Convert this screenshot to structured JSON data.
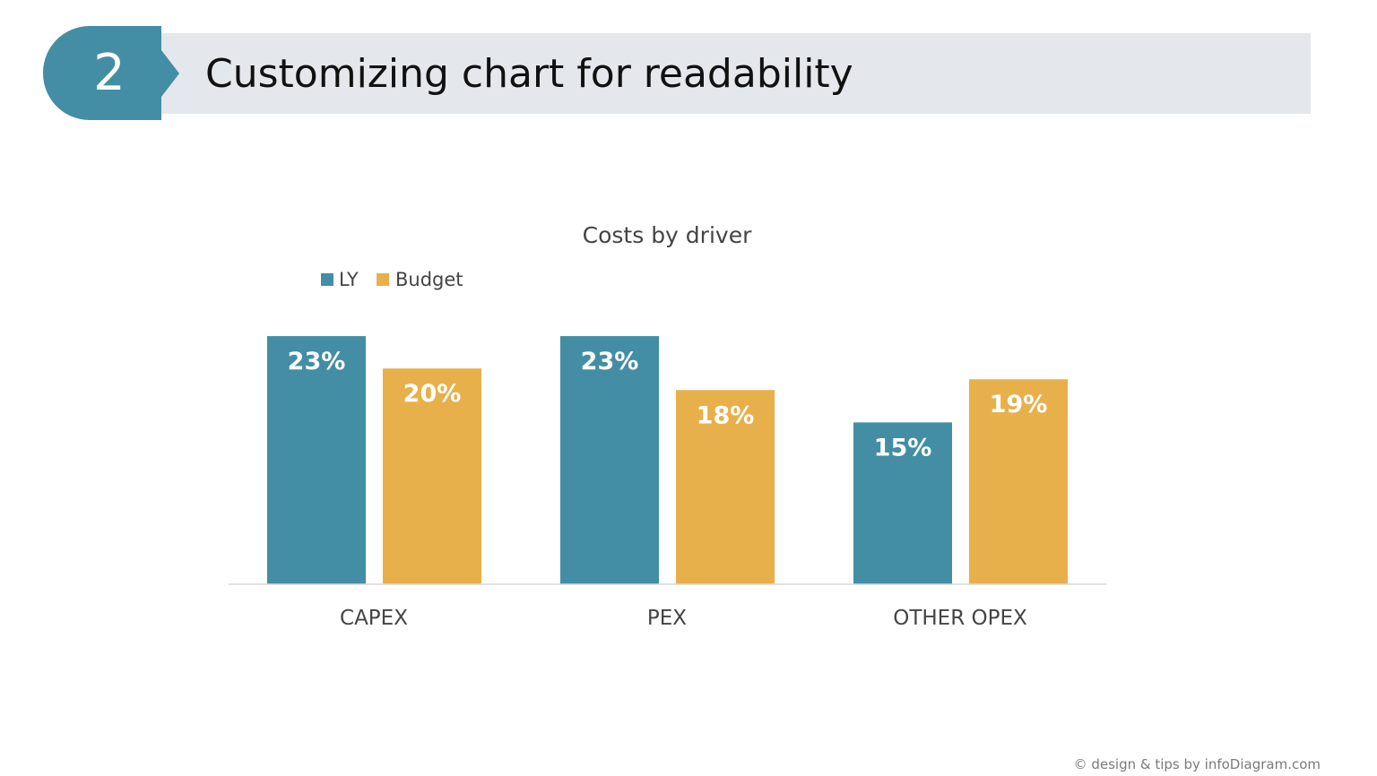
{
  "header": {
    "step_number": "2",
    "title": "Customizing chart for readability"
  },
  "footer": {
    "credit": "© design & tips by infoDiagram.com"
  },
  "colors": {
    "accent": "#438ea4",
    "ly": "#438ea4",
    "budget": "#e8b04a",
    "header_band": "#e4e8ed"
  },
  "chart_data": {
    "type": "bar",
    "title": "Costs by driver",
    "categories": [
      "CAPEX",
      "PEX",
      "OTHER OPEX"
    ],
    "series": [
      {
        "name": "LY",
        "values": [
          23,
          23,
          15
        ],
        "labels": [
          "23%",
          "23%",
          "15%"
        ]
      },
      {
        "name": "Budget",
        "values": [
          20,
          18,
          19
        ],
        "labels": [
          "20%",
          "18%",
          "19%"
        ]
      }
    ],
    "ylim": [
      0,
      25
    ],
    "value_axis_visible": false,
    "grid": false,
    "legend": "top-left",
    "data_labels": "inside-end"
  }
}
